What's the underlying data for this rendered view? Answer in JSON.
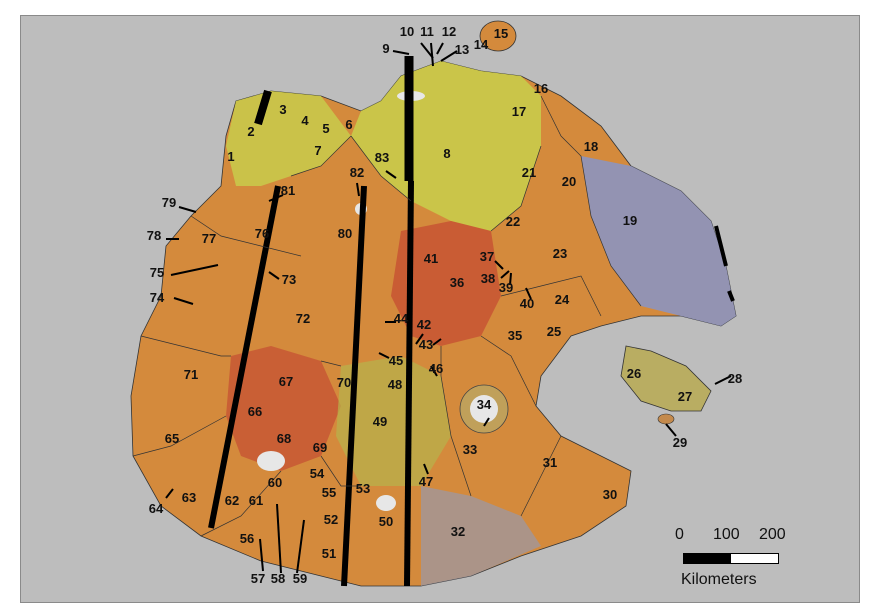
{
  "map": {
    "scale_bar": {
      "ticks": [
        "0",
        "100",
        "200"
      ],
      "unit": "Kilometers"
    },
    "region_labels": [
      {
        "id": "1"
      },
      {
        "id": "2"
      },
      {
        "id": "3"
      },
      {
        "id": "4"
      },
      {
        "id": "5"
      },
      {
        "id": "6"
      },
      {
        "id": "7"
      },
      {
        "id": "8"
      },
      {
        "id": "9"
      },
      {
        "id": "10"
      },
      {
        "id": "11"
      },
      {
        "id": "12"
      },
      {
        "id": "13"
      },
      {
        "id": "14"
      },
      {
        "id": "15"
      },
      {
        "id": "16"
      },
      {
        "id": "17"
      },
      {
        "id": "18"
      },
      {
        "id": "19"
      },
      {
        "id": "20"
      },
      {
        "id": "21"
      },
      {
        "id": "22"
      },
      {
        "id": "23"
      },
      {
        "id": "24"
      },
      {
        "id": "25"
      },
      {
        "id": "26"
      },
      {
        "id": "27"
      },
      {
        "id": "28"
      },
      {
        "id": "29"
      },
      {
        "id": "30"
      },
      {
        "id": "31"
      },
      {
        "id": "32"
      },
      {
        "id": "33"
      },
      {
        "id": "34"
      },
      {
        "id": "35"
      },
      {
        "id": "36"
      },
      {
        "id": "37"
      },
      {
        "id": "38"
      },
      {
        "id": "39"
      },
      {
        "id": "40"
      },
      {
        "id": "41"
      },
      {
        "id": "42"
      },
      {
        "id": "43"
      },
      {
        "id": "44"
      },
      {
        "id": "45"
      },
      {
        "id": "46"
      },
      {
        "id": "47"
      },
      {
        "id": "48"
      },
      {
        "id": "49"
      },
      {
        "id": "50"
      },
      {
        "id": "51"
      },
      {
        "id": "52"
      },
      {
        "id": "53"
      },
      {
        "id": "54"
      },
      {
        "id": "55"
      },
      {
        "id": "56"
      },
      {
        "id": "57"
      },
      {
        "id": "58"
      },
      {
        "id": "59"
      },
      {
        "id": "60"
      },
      {
        "id": "61"
      },
      {
        "id": "62"
      },
      {
        "id": "63"
      },
      {
        "id": "64"
      },
      {
        "id": "65"
      },
      {
        "id": "66"
      },
      {
        "id": "67"
      },
      {
        "id": "68"
      },
      {
        "id": "69"
      },
      {
        "id": "70"
      },
      {
        "id": "71"
      },
      {
        "id": "72"
      },
      {
        "id": "73"
      },
      {
        "id": "74"
      },
      {
        "id": "75"
      },
      {
        "id": "76"
      },
      {
        "id": "77"
      },
      {
        "id": "78"
      },
      {
        "id": "79"
      },
      {
        "id": "80"
      },
      {
        "id": "81"
      },
      {
        "id": "82"
      },
      {
        "id": "83"
      }
    ]
  },
  "colors": {
    "background": "#bdbdbd",
    "yellow_terrain": "#c9c84a",
    "orange_terrain": "#d48a3c",
    "red_terrain": "#c85a34",
    "blue_terrain": "#8f94b8",
    "outline": "#333333",
    "data_gap": "#000000"
  }
}
